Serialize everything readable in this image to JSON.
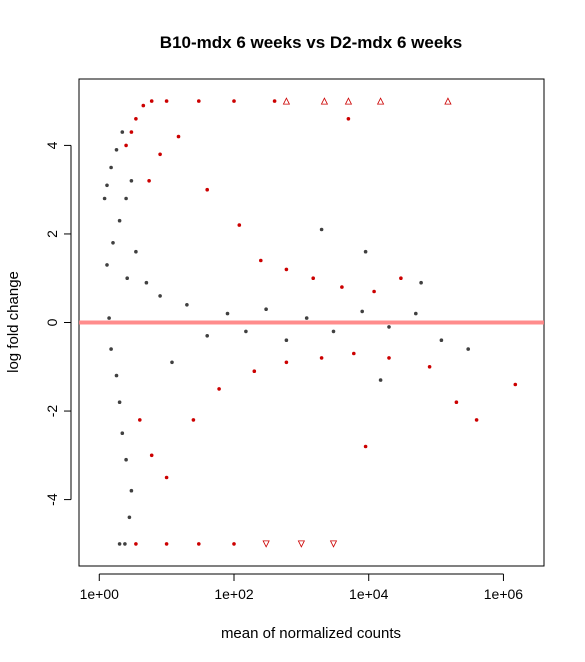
{
  "chart_data": {
    "type": "scatter",
    "title": "B10-mdx 6 weeks vs D2-mdx 6 weeks",
    "xlabel": "mean of normalized counts",
    "ylabel": "log fold change",
    "x_scale": "log10",
    "xlim": [
      0.5,
      4000000
    ],
    "ylim": [
      -5.5,
      5.5
    ],
    "x_ticks": [
      1,
      100,
      10000,
      1000000
    ],
    "x_tick_labels": [
      "1e+00",
      "1e+02",
      "1e+04",
      "1e+06"
    ],
    "y_ticks": [
      -4,
      -2,
      0,
      2,
      4
    ],
    "y_tick_labels": [
      "-4",
      "-2",
      "0",
      "2",
      "4"
    ],
    "grid": false,
    "reference_line": {
      "y": 0,
      "color": "#ff8080"
    },
    "colors": {
      "not_significant": "#404040",
      "significant": "#cc0000"
    },
    "clipped_marker_up": "triangle-up",
    "clipped_marker_down": "triangle-down",
    "series": [
      {
        "significant": false,
        "points": [
          [
            1.2,
            2.8
          ],
          [
            1.3,
            3.1
          ],
          [
            1.5,
            3.5
          ],
          [
            1.8,
            3.9
          ],
          [
            2.2,
            4.3
          ],
          [
            1.3,
            1.3
          ],
          [
            1.6,
            1.8
          ],
          [
            2.0,
            2.3
          ],
          [
            2.5,
            2.8
          ],
          [
            3.0,
            3.2
          ],
          [
            1.4,
            0.1
          ],
          [
            1.5,
            -0.6
          ],
          [
            1.8,
            -1.2
          ],
          [
            2.0,
            -1.8
          ],
          [
            2.2,
            -2.5
          ],
          [
            2.5,
            -3.1
          ],
          [
            3.0,
            -3.8
          ],
          [
            2.8,
            -4.4
          ],
          [
            2.6,
            1.0
          ],
          [
            3.5,
            1.6
          ],
          [
            5.0,
            0.9
          ],
          [
            8.0,
            0.6
          ],
          [
            12.0,
            -0.9
          ],
          [
            20.0,
            0.4
          ],
          [
            40.0,
            -0.3
          ],
          [
            80.0,
            0.2
          ],
          [
            150.0,
            -0.2
          ],
          [
            300.0,
            0.3
          ],
          [
            600.0,
            -0.4
          ],
          [
            1200.0,
            0.1
          ],
          [
            3000.0,
            -0.2
          ],
          [
            8000.0,
            0.25
          ],
          [
            20000.0,
            -0.1
          ],
          [
            50000.0,
            0.2
          ],
          [
            120000.0,
            -0.4
          ],
          [
            300000.0,
            -0.6
          ],
          [
            2000.0,
            2.1
          ],
          [
            9000.0,
            1.6
          ],
          [
            15000.0,
            -1.3
          ],
          [
            60000.0,
            0.9
          ],
          [
            2.0,
            -5.0
          ],
          [
            2.4,
            -5.0
          ]
        ]
      },
      {
        "significant": true,
        "points": [
          [
            6.0,
            5.0
          ],
          [
            10.0,
            5.0
          ],
          [
            30.0,
            5.0
          ],
          [
            100.0,
            5.0
          ],
          [
            400.0,
            5.0
          ],
          [
            2.5,
            4.0
          ],
          [
            3.0,
            4.3
          ],
          [
            3.5,
            4.6
          ],
          [
            4.5,
            4.9
          ],
          [
            5.5,
            3.2
          ],
          [
            8.0,
            3.8
          ],
          [
            15.0,
            4.2
          ],
          [
            40.0,
            3.0
          ],
          [
            120.0,
            2.2
          ],
          [
            250.0,
            1.4
          ],
          [
            600.0,
            1.2
          ],
          [
            1500.0,
            1.0
          ],
          [
            4000.0,
            0.8
          ],
          [
            12000.0,
            0.7
          ],
          [
            30000.0,
            1.0
          ],
          [
            4.0,
            -2.2
          ],
          [
            6.0,
            -3.0
          ],
          [
            10.0,
            -3.5
          ],
          [
            25.0,
            -2.2
          ],
          [
            60.0,
            -1.5
          ],
          [
            200.0,
            -1.1
          ],
          [
            600.0,
            -0.9
          ],
          [
            2000.0,
            -0.8
          ],
          [
            6000.0,
            -0.7
          ],
          [
            20000.0,
            -0.8
          ],
          [
            80000.0,
            -1.0
          ],
          [
            3.5,
            -5.0
          ],
          [
            10.0,
            -5.0
          ],
          [
            30.0,
            -5.0
          ],
          [
            100.0,
            -5.0
          ],
          [
            5000.0,
            4.6
          ],
          [
            9000.0,
            -2.8
          ],
          [
            200000.0,
            -1.8
          ],
          [
            400000.0,
            -2.2
          ],
          [
            1500000.0,
            -1.4
          ]
        ]
      }
    ],
    "clipped_points": [
      {
        "x": 600,
        "y": 5.0,
        "direction": "up"
      },
      {
        "x": 2200,
        "y": 5.0,
        "direction": "up"
      },
      {
        "x": 5000,
        "y": 5.0,
        "direction": "up"
      },
      {
        "x": 15000,
        "y": 5.0,
        "direction": "up"
      },
      {
        "x": 150000,
        "y": 5.0,
        "direction": "up"
      },
      {
        "x": 300,
        "y": -5.0,
        "direction": "down"
      },
      {
        "x": 1000,
        "y": -5.0,
        "direction": "down"
      },
      {
        "x": 3000,
        "y": -5.0,
        "direction": "down"
      }
    ]
  }
}
